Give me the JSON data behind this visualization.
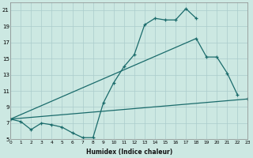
{
  "background_color": "#cce8e2",
  "grid_color": "#aacccc",
  "line_color": "#1a6b6b",
  "xlabel": "Humidex (Indice chaleur)",
  "xlim": [
    0,
    23
  ],
  "ylim": [
    5,
    22
  ],
  "yticks": [
    5,
    7,
    9,
    11,
    13,
    15,
    17,
    19,
    21
  ],
  "xticks": [
    0,
    1,
    2,
    3,
    4,
    5,
    6,
    7,
    8,
    9,
    10,
    11,
    12,
    13,
    14,
    15,
    16,
    17,
    18,
    19,
    20,
    21,
    22,
    23
  ],
  "series": [
    {
      "x": [
        0,
        1,
        2,
        3,
        4,
        5,
        6,
        7,
        8,
        9,
        10,
        11,
        12,
        13,
        14,
        15,
        16,
        17,
        18
      ],
      "y": [
        7.5,
        7.2,
        6.2,
        7.0,
        6.8,
        6.5,
        5.8,
        5.2,
        5.2,
        9.5,
        12.0,
        14.0,
        15.5,
        19.2,
        20.0,
        19.8,
        19.8,
        21.2,
        20.0
      ]
    },
    {
      "x": [
        0,
        18,
        19,
        20,
        21,
        22
      ],
      "y": [
        7.5,
        17.5,
        15.2,
        15.2,
        13.2,
        10.5
      ]
    },
    {
      "x": [
        0,
        23
      ],
      "y": [
        7.5,
        10.0
      ]
    }
  ]
}
